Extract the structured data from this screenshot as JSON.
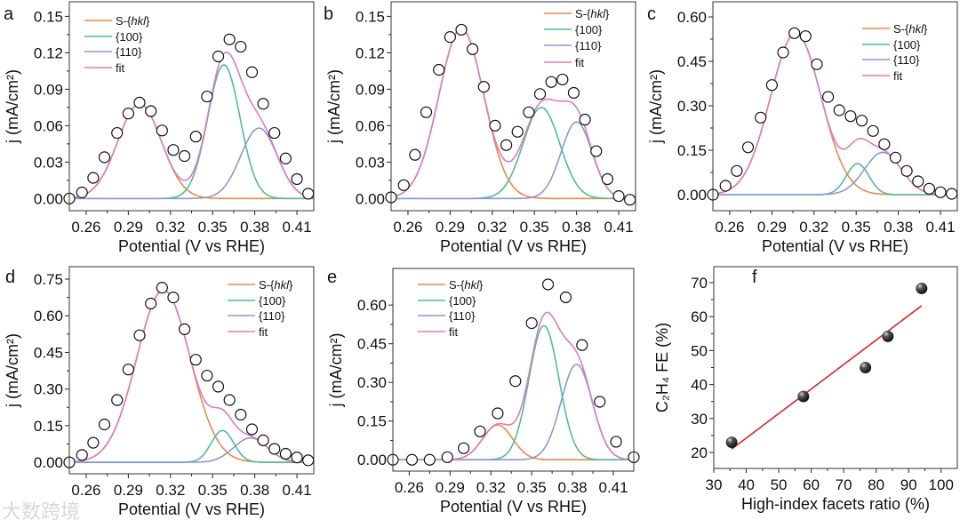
{
  "watermark": "大数跨境",
  "colors": {
    "S-{hkl}": "#f0874a",
    "{100}": "#4cbf93",
    "{110}": "#8b98cf",
    "fit": "#e07bc0",
    "line": "#e02424",
    "point": "#333333"
  },
  "chart_data": [
    {
      "panel": "a",
      "type": "line",
      "xlabel": "Potential (V vs RHE)",
      "ylabel": "j (mA/cm²)",
      "xlim": [
        0.248,
        0.422
      ],
      "ylim": [
        -0.01,
        0.162
      ],
      "xticks": [
        "0.26",
        "0.29",
        "0.32",
        "0.35",
        "0.38",
        "0.41"
      ],
      "yticks": [
        "0.00",
        "0.03",
        "0.06",
        "0.09",
        "0.12",
        "0.15"
      ],
      "legend": [
        "S-{hkl}",
        "{100}",
        "{110}",
        "fit"
      ],
      "legend_position": "top-left",
      "components": [
        {
          "name": "S-{hkl}",
          "center": 0.298,
          "amplitude": 0.078,
          "sigma": 0.0155
        },
        {
          "name": "{100}",
          "center": 0.358,
          "amplitude": 0.11,
          "sigma": 0.0115
        },
        {
          "name": "{110}",
          "center": 0.383,
          "amplitude": 0.058,
          "sigma": 0.013
        }
      ],
      "points": {
        "x": [
          0.248,
          0.257,
          0.265,
          0.273,
          0.282,
          0.29,
          0.298,
          0.306,
          0.314,
          0.322,
          0.33,
          0.338,
          0.346,
          0.354,
          0.362,
          0.37,
          0.378,
          0.386,
          0.394,
          0.402,
          0.41,
          0.418
        ],
        "y": [
          0.0,
          0.005,
          0.017,
          0.034,
          0.054,
          0.07,
          0.079,
          0.072,
          0.056,
          0.04,
          0.035,
          0.051,
          0.084,
          0.117,
          0.131,
          0.125,
          0.104,
          0.078,
          0.054,
          0.033,
          0.016,
          0.004
        ]
      }
    },
    {
      "panel": "b",
      "type": "line",
      "xlabel": "Potential (V vs RHE)",
      "ylabel": "j (mA/cm²)",
      "xlim": [
        0.248,
        0.422
      ],
      "ylim": [
        -0.01,
        0.162
      ],
      "xticks": [
        "0.26",
        "0.29",
        "0.32",
        "0.35",
        "0.38",
        "0.41"
      ],
      "yticks": [
        "0.00",
        "0.03",
        "0.06",
        "0.09",
        "0.12",
        "0.15"
      ],
      "legend": [
        "S-{hkl}",
        "{100}",
        "{110}",
        "fit"
      ],
      "legend_position": "top-right",
      "components": [
        {
          "name": "S-{hkl}",
          "center": 0.298,
          "amplitude": 0.14,
          "sigma": 0.016
        },
        {
          "name": "{100}",
          "center": 0.355,
          "amplitude": 0.075,
          "sigma": 0.013
        },
        {
          "name": "{110}",
          "center": 0.38,
          "amplitude": 0.063,
          "sigma": 0.011
        }
      ],
      "points": {
        "x": [
          0.248,
          0.257,
          0.265,
          0.273,
          0.282,
          0.29,
          0.298,
          0.306,
          0.314,
          0.322,
          0.33,
          0.338,
          0.346,
          0.354,
          0.362,
          0.37,
          0.378,
          0.386,
          0.394,
          0.402,
          0.41,
          0.418
        ],
        "y": [
          0.001,
          0.011,
          0.036,
          0.071,
          0.106,
          0.133,
          0.139,
          0.123,
          0.092,
          0.06,
          0.044,
          0.055,
          0.071,
          0.086,
          0.096,
          0.098,
          0.087,
          0.065,
          0.039,
          0.016,
          0.002,
          -0.001
        ]
      }
    },
    {
      "panel": "c",
      "type": "line",
      "xlabel": "Potential (V vs RHE)",
      "ylabel": "j (mA/cm²)",
      "xlim": [
        0.248,
        0.422
      ],
      "ylim": [
        -0.054,
        0.651
      ],
      "xticks": [
        "0.26",
        "0.29",
        "0.32",
        "0.35",
        "0.38",
        "0.41"
      ],
      "yticks": [
        "0.00",
        "0.15",
        "0.30",
        "0.45",
        "0.60"
      ],
      "legend": [
        "S-{hkl}",
        "{100}",
        "{110}",
        "fit"
      ],
      "legend_position": "top-right",
      "components": [
        {
          "name": "S-{hkl}",
          "center": 0.307,
          "amplitude": 0.545,
          "sigma": 0.018
        },
        {
          "name": "{100}",
          "center": 0.351,
          "amplitude": 0.105,
          "sigma": 0.008
        },
        {
          "name": "{110}",
          "center": 0.369,
          "amplitude": 0.143,
          "sigma": 0.013
        }
      ],
      "points": {
        "x": [
          0.248,
          0.257,
          0.265,
          0.273,
          0.282,
          0.29,
          0.298,
          0.306,
          0.314,
          0.322,
          0.33,
          0.338,
          0.346,
          0.354,
          0.362,
          0.37,
          0.378,
          0.386,
          0.394,
          0.402,
          0.41,
          0.418
        ],
        "y": [
          0.0,
          0.03,
          0.08,
          0.16,
          0.26,
          0.37,
          0.48,
          0.545,
          0.535,
          0.44,
          0.33,
          0.285,
          0.265,
          0.25,
          0.215,
          0.17,
          0.125,
          0.08,
          0.045,
          0.02,
          0.008,
          0.003
        ]
      }
    },
    {
      "panel": "d",
      "type": "line",
      "xlabel": "Potential (V vs RHE)",
      "ylabel": "j (mA/cm²)",
      "xlim": [
        0.248,
        0.422
      ],
      "ylim": [
        -0.047,
        0.801
      ],
      "xticks": [
        "0.26",
        "0.29",
        "0.32",
        "0.35",
        "0.38",
        "0.41"
      ],
      "yticks": [
        "0.00",
        "0.15",
        "0.30",
        "0.45",
        "0.60",
        "0.75"
      ],
      "legend": [
        "S-{hkl}",
        "{100}",
        "{110}",
        "fit"
      ],
      "legend_position": "top-right",
      "components": [
        {
          "name": "S-{hkl}",
          "center": 0.315,
          "amplitude": 0.705,
          "sigma": 0.019
        },
        {
          "name": "{100}",
          "center": 0.357,
          "amplitude": 0.13,
          "sigma": 0.008
        },
        {
          "name": "{110}",
          "center": 0.377,
          "amplitude": 0.1,
          "sigma": 0.012
        }
      ],
      "points": {
        "x": [
          0.248,
          0.257,
          0.265,
          0.273,
          0.282,
          0.29,
          0.298,
          0.306,
          0.314,
          0.322,
          0.33,
          0.338,
          0.346,
          0.354,
          0.362,
          0.37,
          0.378,
          0.386,
          0.394,
          0.402,
          0.41,
          0.418
        ],
        "y": [
          0.0,
          0.03,
          0.08,
          0.155,
          0.255,
          0.38,
          0.52,
          0.65,
          0.715,
          0.675,
          0.545,
          0.42,
          0.355,
          0.31,
          0.255,
          0.195,
          0.135,
          0.09,
          0.055,
          0.035,
          0.02,
          0.008
        ]
      }
    },
    {
      "panel": "e",
      "type": "line",
      "xlabel": "Potential (V vs RHE)",
      "ylabel": "j (mA/cm²)",
      "xlim": [
        0.248,
        0.425
      ],
      "ylim": [
        -0.044,
        0.742
      ],
      "xticks": [
        "0.26",
        "0.29",
        "0.32",
        "0.35",
        "0.38",
        "0.41"
      ],
      "yticks": [
        "0.00",
        "0.15",
        "0.30",
        "0.45",
        "0.60"
      ],
      "legend": [
        "S-{hkl}",
        "{100}",
        "{110}",
        "fit"
      ],
      "legend_position": "top-left",
      "components": [
        {
          "name": "S-{hkl}",
          "center": 0.325,
          "amplitude": 0.135,
          "sigma": 0.011
        },
        {
          "name": "{100}",
          "center": 0.359,
          "amplitude": 0.52,
          "sigma": 0.011
        },
        {
          "name": "{110}",
          "center": 0.383,
          "amplitude": 0.37,
          "sigma": 0.0115
        }
      ],
      "points": {
        "x": [
          0.248,
          0.262,
          0.275,
          0.288,
          0.3,
          0.312,
          0.325,
          0.338,
          0.35,
          0.362,
          0.375,
          0.387,
          0.4,
          0.412,
          0.425
        ],
        "y": [
          0.0,
          0.0,
          0.0,
          0.01,
          0.045,
          0.11,
          0.18,
          0.305,
          0.53,
          0.68,
          0.63,
          0.445,
          0.225,
          0.07,
          0.01
        ]
      }
    },
    {
      "panel": "f",
      "type": "scatter",
      "xlabel": "High-index facets ratio (%)",
      "ylabel": "C₂H₄ FE (%)",
      "xlim": [
        30,
        105
      ],
      "ylim": [
        15.3,
        74.7
      ],
      "xticks": [
        "30",
        "40",
        "50",
        "60",
        "70",
        "80",
        "90",
        "100"
      ],
      "yticks": [
        "20",
        "30",
        "40",
        "50",
        "60",
        "70"
      ],
      "points": {
        "x": [
          35.5,
          57.6,
          76.7,
          83.6,
          94.0
        ],
        "y": [
          23.0,
          36.5,
          45.0,
          54.2,
          68.3
        ]
      },
      "fit_line": {
        "x": [
          35.5,
          94.0
        ],
        "y": [
          21.0,
          63.2
        ]
      }
    }
  ]
}
